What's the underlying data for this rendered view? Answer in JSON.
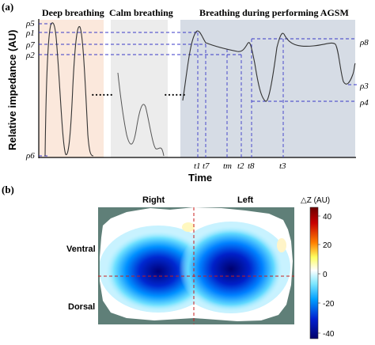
{
  "panel_a": {
    "label": "(a)",
    "ylabel": "Relative impedance (AU)",
    "xlabel": "Time",
    "sections": {
      "deep": "Deep breathing",
      "calm": "Calm breathing",
      "agsm": "Breathing during performing AGSM"
    },
    "rho_labels": {
      "p5": "ρ5",
      "p1": "ρ1",
      "p7": "ρ7",
      "p2": "ρ2",
      "p6": "ρ6",
      "p8": "ρ8",
      "p3": "ρ3",
      "p4": "ρ4"
    },
    "t_labels": {
      "t1": "t1",
      "t7": "t7",
      "tm": "tm",
      "t2": "t2",
      "t8": "t8",
      "t3": "t3"
    },
    "ellipsis": "……",
    "colors": {
      "deep_bg": "#fbe9dd",
      "calm_bg": "#ececec",
      "agsm_bg": "#d7dde6",
      "dash": "#3030c8"
    }
  },
  "panel_b": {
    "label": "(b)",
    "right_label": "Right",
    "left_label": "Left",
    "ventral_label": "Ventral",
    "dorsal_label": "Dorsal",
    "colorbar_title": "△Z (AU)",
    "colorbar_ticks": [
      "40",
      "20",
      "0",
      "-20",
      "-40"
    ],
    "colors": {
      "background": "#5f7f78",
      "crosshair": "#c81e1e"
    }
  }
}
